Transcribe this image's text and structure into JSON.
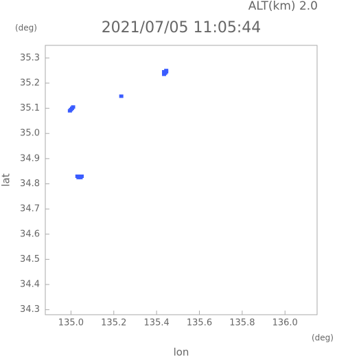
{
  "chart_data": {
    "type": "scatter",
    "title": "2021/07/05 11:05:44",
    "subtitle": "ALT(km) 2.0",
    "y_unit": "(deg)",
    "x_unit": "(deg)",
    "x_label": "lon",
    "y_label": "lat",
    "xlim": [
      134.88,
      136.15
    ],
    "ylim": [
      34.28,
      35.35
    ],
    "xticks": [
      {
        "value": 135,
        "label": "135.0"
      },
      135.2,
      135.4,
      135.6,
      135.8,
      {
        "value": 136,
        "label": "136.0"
      }
    ],
    "yticks": [
      34.3,
      34.4,
      34.5,
      34.6,
      34.7,
      34.8,
      34.9,
      {
        "value": 35,
        "label": "35.0"
      },
      35.1,
      35.2,
      35.3
    ],
    "series": [
      {
        "color": "#3a5cff",
        "x": [
          135.435,
          135.445,
          135.44,
          135.435,
          135.445,
          135.235,
          134.995,
          135.0,
          135.005,
          135.01,
          135.03,
          135.04,
          135.05,
          135.035,
          135.045
        ],
        "y": [
          35.245,
          35.245,
          35.24,
          35.235,
          35.25,
          35.148,
          35.09,
          35.095,
          35.1,
          35.105,
          34.83,
          34.83,
          34.83,
          34.825,
          34.825
        ]
      }
    ]
  }
}
